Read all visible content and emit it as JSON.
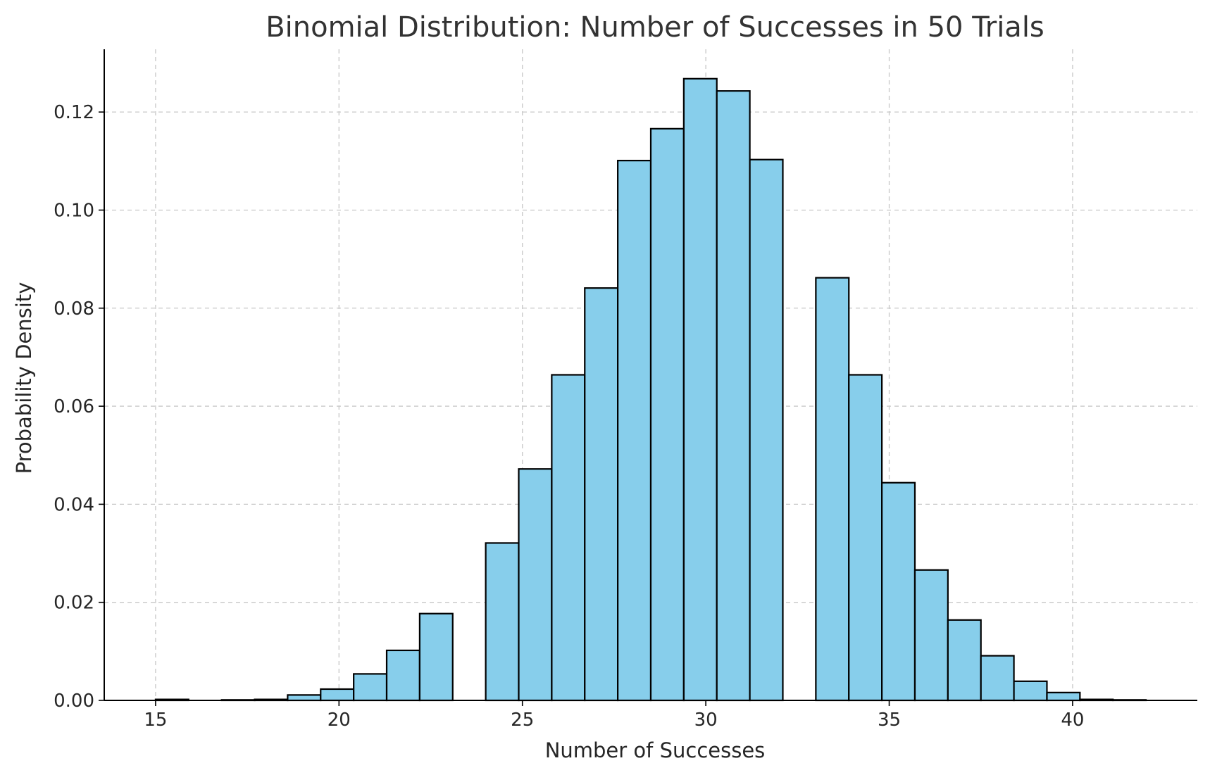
{
  "chart_data": {
    "type": "bar",
    "title": "Binomial Distribution: Number of Successes in 50 Trials",
    "xlabel": "Number of Successes",
    "ylabel": "Probability Density",
    "xlim": [
      13.6,
      43.4
    ],
    "ylim": [
      0,
      0.1328
    ],
    "bin_width": 0.9,
    "x_ticks": [
      15,
      20,
      25,
      30,
      35,
      40
    ],
    "x_tick_labels": [
      "15",
      "20",
      "25",
      "30",
      "35",
      "40"
    ],
    "y_ticks": [
      0.0,
      0.02,
      0.04,
      0.06,
      0.08,
      0.1,
      0.12
    ],
    "y_tick_labels": [
      "0.00",
      "0.02",
      "0.04",
      "0.06",
      "0.08",
      "0.10",
      "0.12"
    ],
    "grid": true,
    "bar_color": "#87ceeb",
    "edge_color": "#000000",
    "bins": [
      {
        "start": 15.0,
        "value": 0.0002
      },
      {
        "start": 15.9,
        "value": 0.0
      },
      {
        "start": 16.8,
        "value": 0.0001
      },
      {
        "start": 17.7,
        "value": 0.0002
      },
      {
        "start": 18.6,
        "value": 0.0011
      },
      {
        "start": 19.5,
        "value": 0.0023
      },
      {
        "start": 20.4,
        "value": 0.0054
      },
      {
        "start": 21.3,
        "value": 0.0102
      },
      {
        "start": 22.2,
        "value": 0.0177
      },
      {
        "start": 23.1,
        "value": 0.0
      },
      {
        "start": 24.0,
        "value": 0.0321
      },
      {
        "start": 24.9,
        "value": 0.0472
      },
      {
        "start": 25.8,
        "value": 0.0664
      },
      {
        "start": 26.7,
        "value": 0.0841
      },
      {
        "start": 27.6,
        "value": 0.1101
      },
      {
        "start": 28.5,
        "value": 0.1166
      },
      {
        "start": 29.4,
        "value": 0.1268
      },
      {
        "start": 30.3,
        "value": 0.1243
      },
      {
        "start": 31.2,
        "value": 0.1103
      },
      {
        "start": 32.1,
        "value": 0.0
      },
      {
        "start": 33.0,
        "value": 0.0862
      },
      {
        "start": 33.9,
        "value": 0.0664
      },
      {
        "start": 34.8,
        "value": 0.0444
      },
      {
        "start": 35.7,
        "value": 0.0266
      },
      {
        "start": 36.6,
        "value": 0.0164
      },
      {
        "start": 37.5,
        "value": 0.0091
      },
      {
        "start": 38.4,
        "value": 0.0039
      },
      {
        "start": 39.3,
        "value": 0.0016
      },
      {
        "start": 40.2,
        "value": 0.0002
      },
      {
        "start": 41.1,
        "value": 0.0001
      }
    ]
  }
}
